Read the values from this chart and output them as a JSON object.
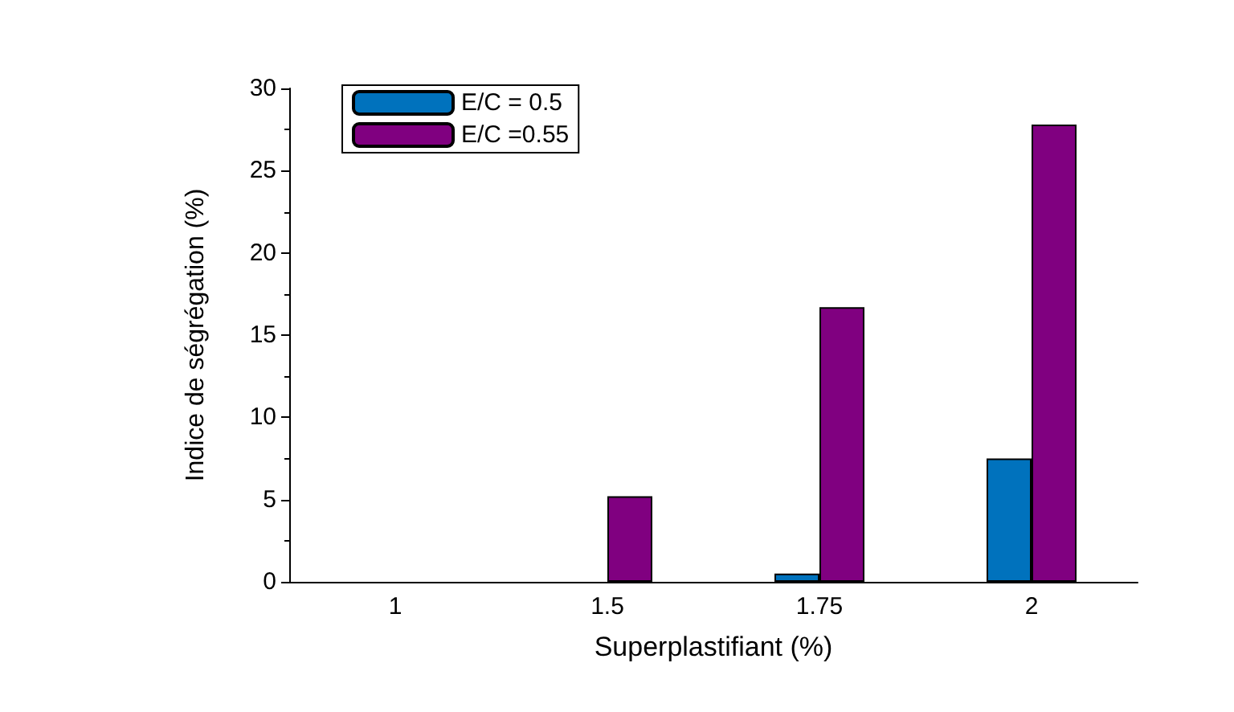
{
  "chart_data": {
    "type": "bar",
    "xlabel": "Superplastifiant (%)",
    "ylabel": "Indice de ségrégation (%)",
    "categories": [
      "1",
      "1.5",
      "1.75",
      "2"
    ],
    "series": [
      {
        "name": "E/C = 0.5",
        "color": "#0072bd",
        "values": [
          0,
          0,
          0.5,
          7.5
        ]
      },
      {
        "name": "E/C =0.55",
        "color": "#800080",
        "values": [
          0,
          5.2,
          16.7,
          27.8
        ]
      }
    ],
    "ylim": [
      0,
      30
    ],
    "yticks": [
      0,
      5,
      10,
      15,
      20,
      25,
      30
    ],
    "grid": false,
    "legend": "top left"
  }
}
